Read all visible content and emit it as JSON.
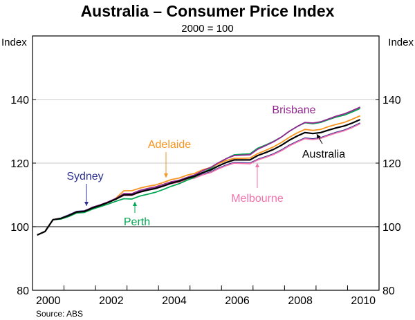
{
  "chart_data": {
    "type": "line",
    "title": "Australia – Consumer Price Index",
    "subtitle": "2000 = 100",
    "ylabel_left": "Index",
    "ylabel_right": "Index",
    "source": "Source: ABS",
    "ylim": [
      80,
      160
    ],
    "yticks": [
      80,
      100,
      120,
      140
    ],
    "xlim": [
      2000,
      2011
    ],
    "xtick_labels": [
      "2000",
      "2002",
      "2004",
      "2006",
      "2008",
      "2010"
    ],
    "grid": true,
    "x_start": 2000.15,
    "x_step": 0.25,
    "series": [
      {
        "name": "Sydney",
        "color": "#2E3192",
        "values": [
          97.4,
          98.5,
          102.2,
          102.7,
          103.7,
          104.8,
          105,
          106,
          106.8,
          107.7,
          108.8,
          109.9,
          110,
          111,
          111.6,
          112.1,
          112.8,
          113.6,
          114.1,
          114.9,
          115.5,
          116.5,
          117.2,
          118.4,
          119.4,
          120.2,
          120.1,
          120,
          121.2,
          122,
          122.9,
          124.1,
          125.6,
          126.8,
          127.9,
          127.6,
          128,
          128.9,
          129.7,
          130.4,
          131.4,
          132.6
        ]
      },
      {
        "name": "Melbourne",
        "color": "#F173AC",
        "values": [
          97.4,
          98.5,
          102.2,
          102.6,
          103.5,
          104.6,
          104.8,
          105.9,
          106.7,
          107.6,
          108.7,
          109.8,
          109.8,
          110.8,
          111.5,
          112,
          112.7,
          113.5,
          114,
          114.8,
          115.3,
          116.3,
          117,
          118.2,
          119.2,
          120,
          119.9,
          119.8,
          121,
          121.8,
          122.7,
          123.9,
          125.4,
          126.6,
          127.7,
          127.4,
          127.8,
          128.7,
          129.5,
          130.2,
          131.2,
          132.4
        ]
      },
      {
        "name": "Perth",
        "color": "#00A651",
        "values": [
          97.4,
          98.5,
          102.2,
          102.4,
          103.2,
          104.3,
          104.5,
          105.5,
          106.3,
          107.1,
          108,
          108.8,
          108.7,
          109.6,
          110.2,
          110.8,
          111.7,
          112.7,
          113.5,
          114.6,
          115.6,
          117,
          118.2,
          119.9,
          121.4,
          122.6,
          122.8,
          122.9,
          124.7,
          125.7,
          126.8,
          128.2,
          130,
          131.5,
          132.7,
          132.4,
          132.8,
          133.7,
          134.5,
          135.1,
          136.1,
          137.2
        ]
      },
      {
        "name": "Adelaide",
        "color": "#F7941D",
        "values": [
          97.4,
          98.5,
          102.2,
          102.6,
          103.5,
          104.6,
          104.8,
          105.9,
          106.7,
          107.6,
          109,
          111.3,
          111.3,
          112.1,
          112.7,
          113.1,
          113.9,
          114.8,
          115.3,
          116.2,
          116.8,
          117.9,
          118.6,
          119.8,
          120.8,
          121.5,
          121.5,
          121.6,
          123,
          124,
          125.1,
          126.5,
          128.1,
          129.5,
          130.6,
          130.3,
          130.6,
          131.5,
          132.2,
          132.8,
          133.8,
          134.9
        ]
      },
      {
        "name": "Brisbane",
        "color": "#92278F",
        "values": [
          97.4,
          98.5,
          102.2,
          102.6,
          103.6,
          104.7,
          104.9,
          106.1,
          106.9,
          107.8,
          108.9,
          110.4,
          110.4,
          111.4,
          112,
          112.5,
          113.3,
          114.1,
          114.6,
          115.5,
          116.3,
          117.6,
          118.6,
          120.1,
          121.4,
          122.4,
          122.5,
          122.6,
          124.4,
          125.5,
          126.7,
          128.2,
          130,
          131.5,
          132.8,
          132.6,
          133,
          133.9,
          134.8,
          135.5,
          136.5,
          137.6
        ]
      },
      {
        "name": "Australia",
        "color": "#000000",
        "values": [
          97.4,
          98.5,
          102.2,
          102.6,
          103.5,
          104.6,
          104.8,
          105.9,
          106.7,
          107.6,
          108.7,
          110,
          110,
          110.9,
          111.5,
          112,
          112.8,
          113.7,
          114.3,
          115.2,
          115.9,
          117,
          117.8,
          119.1,
          120.2,
          121,
          121,
          121,
          122.4,
          123.3,
          124.3,
          125.6,
          127.2,
          128.5,
          129.6,
          129.3,
          129.6,
          130.4,
          131.1,
          131.7,
          132.6,
          133.7
        ]
      }
    ]
  }
}
